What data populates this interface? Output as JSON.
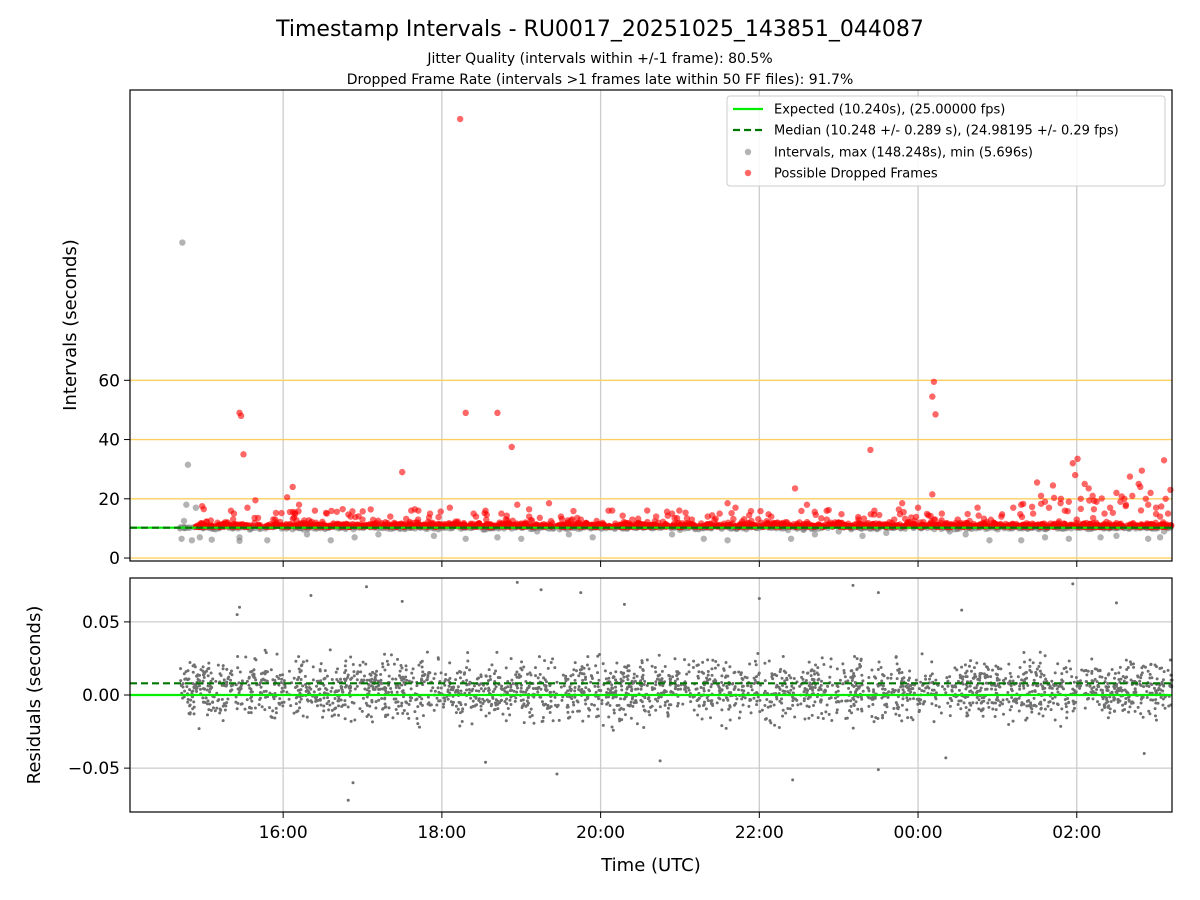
{
  "chart_data": [
    {
      "type": "scatter",
      "panel": "intervals",
      "title": "Timestamp Intervals - RU0017_20251025_143851_044087",
      "subtitles": [
        "Jitter Quality (intervals within +/-1 frame): 80.5%",
        "Dropped Frame Rate (intervals >1 frames late within 50 FF files): 91.7%"
      ],
      "xlabel": "Time (UTC)",
      "ylabel": "Intervals (seconds)",
      "xlim_hours": [
        14.07,
        27.2
      ],
      "ylim": [
        -1,
        158
      ],
      "xticks": [
        {
          "label": "16:00",
          "hour": 16
        },
        {
          "label": "18:00",
          "hour": 18
        },
        {
          "label": "20:00",
          "hour": 20
        },
        {
          "label": "22:00",
          "hour": 22
        },
        {
          "label": "00:00",
          "hour": 24
        },
        {
          "label": "02:00",
          "hour": 26
        }
      ],
      "yticks": [
        0,
        20,
        40,
        60
      ],
      "horizontal_lines": [
        0,
        20,
        40,
        60
      ],
      "expected": 10.24,
      "median": 10.248,
      "legend": {
        "placement": "top-right",
        "entries": [
          {
            "label": "Expected (10.240s), (25.00000 fps)",
            "style": "solid-line",
            "color": "#00ee00"
          },
          {
            "label": "Median (10.248 +/- 0.289 s), (24.98195 +/- 0.29 fps)",
            "style": "dashed-line",
            "color": "#007700"
          },
          {
            "label": "Intervals, max (148.248s), min (5.696s)",
            "style": "marker",
            "color": "#808080"
          },
          {
            "label": "Possible Dropped Frames",
            "style": "marker",
            "color": "#ff0000"
          }
        ]
      },
      "series": [
        {
          "name": "Intervals",
          "color": "#808080",
          "points": [
            [
              14.73,
              106.5
            ],
            [
              14.8,
              31.5
            ],
            [
              14.78,
              18
            ],
            [
              14.9,
              17
            ],
            [
              14.75,
              12.5
            ],
            [
              14.7,
              10
            ],
            [
              14.72,
              6.5
            ],
            [
              14.85,
              6
            ],
            [
              14.95,
              7
            ],
            [
              15.1,
              6.2
            ],
            [
              15.45,
              5.8
            ],
            [
              15.45,
              7
            ],
            [
              15.6,
              10
            ],
            [
              15.8,
              6
            ],
            [
              16.3,
              8
            ],
            [
              16.6,
              6
            ],
            [
              16.9,
              7
            ],
            [
              17.2,
              8
            ],
            [
              17.9,
              7.5
            ],
            [
              18.3,
              6.5
            ],
            [
              18.7,
              7
            ],
            [
              19.0,
              6.5
            ],
            [
              19.6,
              8
            ],
            [
              19.9,
              7
            ],
            [
              20.3,
              10
            ],
            [
              20.9,
              8
            ],
            [
              21.3,
              6.5
            ],
            [
              21.6,
              6
            ],
            [
              22.4,
              6.5
            ],
            [
              22.7,
              8
            ],
            [
              23.3,
              7.5
            ],
            [
              23.6,
              8.5
            ],
            [
              24.4,
              9
            ],
            [
              24.6,
              8
            ],
            [
              24.9,
              6
            ],
            [
              25.3,
              6
            ],
            [
              25.6,
              7
            ],
            [
              25.9,
              6.5
            ],
            [
              26.3,
              7
            ],
            [
              26.5,
              7.5
            ],
            [
              26.9,
              6.5
            ],
            [
              27.05,
              7
            ],
            [
              27.1,
              9
            ],
            [
              19.2,
              9
            ],
            [
              21.0,
              9.5
            ],
            [
              23.0,
              9
            ]
          ]
        },
        {
          "name": "Possible Dropped Frames",
          "color": "#ff0000",
          "points": [
            [
              18.23,
              148.2
            ],
            [
              15.45,
              49
            ],
            [
              15.47,
              48
            ],
            [
              15.5,
              35
            ],
            [
              15.65,
              19.5
            ],
            [
              15.55,
              17
            ],
            [
              15.38,
              15
            ],
            [
              15.3,
              12
            ],
            [
              15.0,
              16.5
            ],
            [
              14.98,
              17.5
            ],
            [
              15.9,
              13
            ],
            [
              16.05,
              20.5
            ],
            [
              16.12,
              24
            ],
            [
              16.2,
              18
            ],
            [
              16.4,
              16
            ],
            [
              16.55,
              15
            ],
            [
              16.75,
              16.5
            ],
            [
              16.85,
              14
            ],
            [
              17.0,
              13
            ],
            [
              17.35,
              14
            ],
            [
              17.5,
              29
            ],
            [
              17.7,
              13
            ],
            [
              17.85,
              15
            ],
            [
              18.1,
              17
            ],
            [
              18.3,
              49
            ],
            [
              18.4,
              15
            ],
            [
              18.55,
              16
            ],
            [
              18.7,
              49
            ],
            [
              18.75,
              15
            ],
            [
              18.88,
              37.5
            ],
            [
              18.95,
              18
            ],
            [
              19.1,
              14
            ],
            [
              19.35,
              18.5
            ],
            [
              19.5,
              14
            ],
            [
              19.75,
              13
            ],
            [
              19.95,
              12.5
            ],
            [
              20.1,
              16
            ],
            [
              20.4,
              13
            ],
            [
              20.7,
              14
            ],
            [
              20.9,
              15
            ],
            [
              21.15,
              13
            ],
            [
              21.35,
              14
            ],
            [
              21.5,
              15
            ],
            [
              21.6,
              18.5
            ],
            [
              21.7,
              17
            ],
            [
              21.9,
              12.5
            ],
            [
              22.15,
              14
            ],
            [
              22.35,
              12
            ],
            [
              22.45,
              23.5
            ],
            [
              22.6,
              18
            ],
            [
              22.85,
              13
            ],
            [
              23.0,
              12
            ],
            [
              23.25,
              13
            ],
            [
              23.4,
              36.5
            ],
            [
              23.45,
              16
            ],
            [
              23.7,
              13
            ],
            [
              23.8,
              18.5
            ],
            [
              24.0,
              17
            ],
            [
              24.2,
              13
            ],
            [
              24.18,
              54.5
            ],
            [
              24.2,
              59.5
            ],
            [
              24.22,
              48.5
            ],
            [
              24.18,
              21.5
            ],
            [
              24.3,
              15
            ],
            [
              24.5,
              13
            ],
            [
              24.65,
              12.5
            ],
            [
              24.75,
              17
            ],
            [
              24.95,
              12
            ],
            [
              25.05,
              14
            ],
            [
              25.2,
              17
            ],
            [
              25.3,
              18
            ],
            [
              25.45,
              15
            ],
            [
              25.5,
              25.5
            ],
            [
              25.55,
              21
            ],
            [
              25.6,
              19
            ],
            [
              25.65,
              17
            ],
            [
              25.7,
              24.5
            ],
            [
              25.8,
              20
            ],
            [
              25.85,
              16
            ],
            [
              25.9,
              19
            ],
            [
              26.0,
              13
            ],
            [
              26.05,
              20
            ],
            [
              26.1,
              25
            ],
            [
              26.15,
              23.5
            ],
            [
              26.2,
              21
            ],
            [
              26.25,
              19
            ],
            [
              26.35,
              15
            ],
            [
              26.42,
              17
            ],
            [
              26.5,
              22
            ],
            [
              26.55,
              19
            ],
            [
              26.6,
              20
            ],
            [
              26.67,
              27.5
            ],
            [
              26.7,
              21
            ],
            [
              26.78,
              25
            ],
            [
              26.82,
              29.5
            ],
            [
              26.87,
              20
            ],
            [
              26.9,
              18
            ],
            [
              26.93,
              22
            ],
            [
              27.0,
              17
            ],
            [
              27.05,
              14
            ],
            [
              27.1,
              33
            ],
            [
              27.12,
              20
            ],
            [
              27.15,
              15
            ],
            [
              27.18,
              23
            ],
            [
              25.95,
              32
            ],
            [
              26.01,
              33.5
            ],
            [
              25.98,
              28
            ],
            [
              26.8,
              24
            ],
            [
              26.62,
              18
            ]
          ]
        }
      ]
    },
    {
      "type": "scatter",
      "panel": "residuals",
      "xlabel": "Time (UTC)",
      "ylabel": "Residuals (seconds)",
      "ylim": [
        -0.08,
        0.08
      ],
      "yticks": [
        {
          "label": "0.05",
          "value": 0.05
        },
        {
          "label": "0.00",
          "value": 0
        },
        {
          "label": "−0.05",
          "value": -0.05
        }
      ],
      "expected": 0.0,
      "median": 0.008,
      "series": [
        {
          "name": "Residuals",
          "color": "#707070",
          "x_range_hours": [
            14.7,
            27.2
          ],
          "count": 2600,
          "center": 0.004,
          "spread": 0.014,
          "notable_points": [
            [
              15.45,
              0.06
            ],
            [
              15.42,
              0.055
            ],
            [
              16.35,
              0.068
            ],
            [
              16.82,
              -0.072
            ],
            [
              16.88,
              -0.06
            ],
            [
              17.05,
              0.074
            ],
            [
              17.5,
              0.064
            ],
            [
              18.55,
              -0.046
            ],
            [
              18.95,
              0.077
            ],
            [
              19.25,
              0.072
            ],
            [
              19.45,
              -0.054
            ],
            [
              19.75,
              0.07
            ],
            [
              20.3,
              0.062
            ],
            [
              20.75,
              -0.045
            ],
            [
              22.0,
              0.066
            ],
            [
              22.42,
              -0.058
            ],
            [
              23.18,
              0.075
            ],
            [
              23.5,
              -0.051
            ],
            [
              23.5,
              0.07
            ],
            [
              24.35,
              -0.043
            ],
            [
              24.55,
              0.058
            ],
            [
              25.95,
              0.076
            ],
            [
              26.5,
              0.063
            ],
            [
              26.85,
              -0.04
            ]
          ]
        }
      ]
    }
  ]
}
